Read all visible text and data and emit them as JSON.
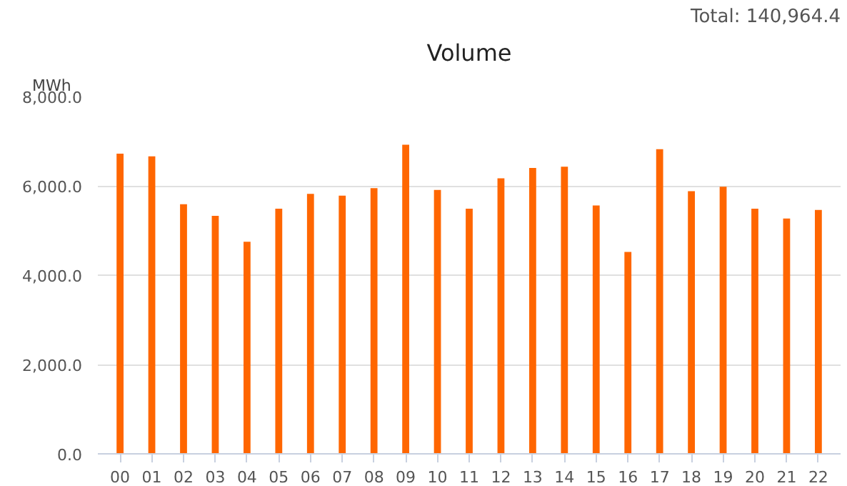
{
  "chart_data": {
    "type": "bar",
    "title": "Volume",
    "ylabel": "MWh",
    "annotations": [
      "Total: 140,964.4"
    ],
    "categories": [
      "00",
      "01",
      "02",
      "03",
      "04",
      "05",
      "06",
      "07",
      "08",
      "09",
      "10",
      "11",
      "12",
      "13",
      "14",
      "15",
      "16",
      "17",
      "18",
      "19",
      "20",
      "21",
      "22"
    ],
    "values": [
      6720,
      6660,
      5590,
      5330,
      4750,
      5490,
      5820,
      5780,
      5950,
      6920,
      5910,
      5490,
      6170,
      6400,
      6430,
      5560,
      4520,
      6820,
      5880,
      5980,
      5490,
      5270,
      5460
    ],
    "color": "#ff6600",
    "ylim": [
      0,
      8000
    ],
    "yticks": [
      {
        "value": 0,
        "label": "0.0"
      },
      {
        "value": 2000,
        "label": "2,000.0"
      },
      {
        "value": 4000,
        "label": "4,000.0"
      },
      {
        "value": 6000,
        "label": "6,000.0"
      },
      {
        "value": 8000,
        "label": "8,000.0"
      }
    ],
    "grid": "y"
  }
}
